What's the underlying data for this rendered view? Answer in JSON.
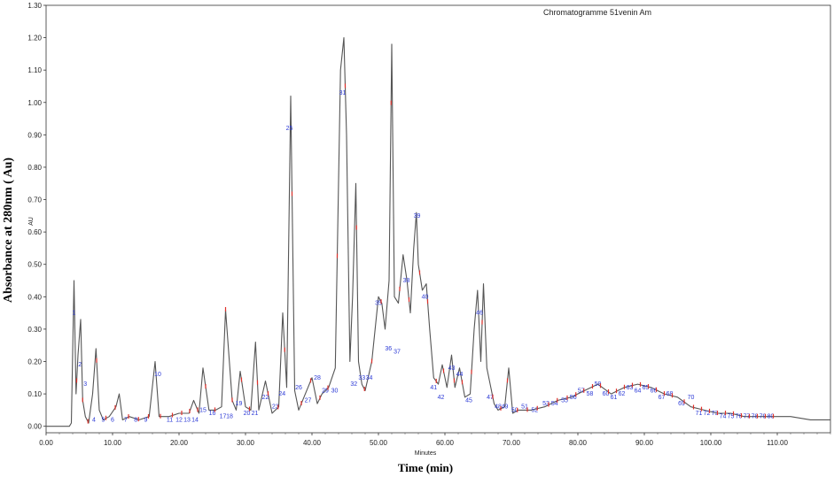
{
  "chart_data": {
    "type": "line",
    "title": "Chromatogramme 51venin Am",
    "ylabel": "Absorbance at 280nm ( Au)",
    "xlabel": "Time (min)",
    "y_unit": "AU",
    "x_unit": "Minutes",
    "xlim": [
      0,
      118
    ],
    "ylim": [
      -0.02,
      1.3
    ],
    "grid": false,
    "x_ticks": [
      "0.00",
      "10.00",
      "20.00",
      "30.00",
      "40.00",
      "50.00",
      "60.00",
      "70.00",
      "80.00",
      "90.00",
      "100.00",
      "110.00"
    ],
    "y_ticks": [
      "0.00",
      "0.10",
      "0.20",
      "0.30",
      "0.40",
      "0.50",
      "0.60",
      "0.70",
      "0.80",
      "0.90",
      "1.00",
      "1.10",
      "1.20",
      "1.30"
    ],
    "series": [
      {
        "color": "#555555",
        "x": [
          0,
          3.5,
          3.8,
          4.2,
          4.5,
          4.8,
          5.2,
          5.5,
          5.9,
          6.4,
          7.0,
          7.5,
          8.0,
          8.6,
          9.5,
          10.5,
          11.0,
          11.5,
          12.5,
          14.0,
          15.5,
          16.4,
          17.0,
          18.5,
          20.0,
          21.5,
          22.2,
          23.0,
          23.6,
          24.5,
          25.5,
          26.4,
          27.0,
          28.0,
          28.6,
          29.2,
          30.0,
          30.8,
          31.5,
          32.0,
          33.0,
          34.0,
          35.0,
          35.6,
          36.2,
          36.8,
          37.4,
          38.0,
          39.0,
          40.0,
          40.8,
          41.5,
          42.5,
          43.5,
          44.3,
          44.8,
          45.2,
          45.7,
          46.1,
          46.6,
          47.0,
          47.5,
          48.0,
          49.0,
          50.0,
          50.5,
          51.0,
          51.6,
          52.0,
          52.4,
          53.0,
          53.7,
          54.3,
          54.8,
          55.3,
          55.7,
          56.0,
          56.6,
          57.2,
          57.7,
          58.3,
          59.0,
          59.6,
          60.3,
          61.0,
          61.5,
          62.2,
          63.0,
          63.8,
          64.4,
          64.9,
          65.4,
          65.8,
          66.3,
          66.9,
          67.4,
          68.0,
          69.0,
          69.6,
          70.2,
          71.0,
          73.0,
          75.0,
          77.0,
          79.0,
          81.0,
          83.0,
          85.0,
          87.0,
          89.0,
          91.0,
          93.0,
          95.0,
          97.0,
          99.0,
          101.0,
          103.0,
          105.0,
          107.0,
          109.0,
          112.0,
          115.0,
          118.0
        ],
        "y": [
          0.0,
          0.0,
          0.01,
          0.45,
          0.1,
          0.22,
          0.33,
          0.08,
          0.03,
          0.01,
          0.1,
          0.24,
          0.05,
          0.02,
          0.03,
          0.06,
          0.1,
          0.02,
          0.03,
          0.02,
          0.03,
          0.2,
          0.03,
          0.03,
          0.04,
          0.04,
          0.08,
          0.04,
          0.18,
          0.05,
          0.05,
          0.06,
          0.36,
          0.08,
          0.05,
          0.17,
          0.06,
          0.05,
          0.26,
          0.05,
          0.14,
          0.04,
          0.06,
          0.35,
          0.12,
          1.02,
          0.11,
          0.05,
          0.1,
          0.15,
          0.07,
          0.1,
          0.12,
          0.18,
          1.1,
          1.2,
          0.9,
          0.2,
          0.4,
          0.75,
          0.2,
          0.13,
          0.11,
          0.2,
          0.4,
          0.38,
          0.3,
          0.45,
          1.18,
          0.4,
          0.38,
          0.53,
          0.45,
          0.35,
          0.55,
          0.66,
          0.5,
          0.42,
          0.44,
          0.3,
          0.15,
          0.13,
          0.19,
          0.12,
          0.22,
          0.12,
          0.18,
          0.09,
          0.1,
          0.3,
          0.42,
          0.2,
          0.44,
          0.18,
          0.12,
          0.07,
          0.05,
          0.06,
          0.18,
          0.04,
          0.05,
          0.05,
          0.06,
          0.08,
          0.09,
          0.11,
          0.13,
          0.1,
          0.12,
          0.13,
          0.12,
          0.1,
          0.09,
          0.06,
          0.05,
          0.04,
          0.04,
          0.03,
          0.03,
          0.03,
          0.03,
          0.02,
          0.02
        ]
      }
    ],
    "peak_labels": [
      {
        "text": "1",
        "x": 4.2,
        "y": 0.35
      },
      {
        "text": "2",
        "x": 5.1,
        "y": 0.19
      },
      {
        "text": "3",
        "x": 5.9,
        "y": 0.13
      },
      {
        "text": "4",
        "x": 7.2,
        "y": 0.02
      },
      {
        "text": "5",
        "x": 8.6,
        "y": 0.02
      },
      {
        "text": "6",
        "x": 10.0,
        "y": 0.02
      },
      {
        "text": "7",
        "x": 12.0,
        "y": 0.02
      },
      {
        "text": "8",
        "x": 13.5,
        "y": 0.02
      },
      {
        "text": "9",
        "x": 15.0,
        "y": 0.02
      },
      {
        "text": "10",
        "x": 16.8,
        "y": 0.16
      },
      {
        "text": "11",
        "x": 18.6,
        "y": 0.02
      },
      {
        "text": "12",
        "x": 20.0,
        "y": 0.02
      },
      {
        "text": "13",
        "x": 21.2,
        "y": 0.02
      },
      {
        "text": "14",
        "x": 22.4,
        "y": 0.02
      },
      {
        "text": "15",
        "x": 23.6,
        "y": 0.05
      },
      {
        "text": "16",
        "x": 25.0,
        "y": 0.04
      },
      {
        "text": "17",
        "x": 26.6,
        "y": 0.03
      },
      {
        "text": "18",
        "x": 27.6,
        "y": 0.03
      },
      {
        "text": "19",
        "x": 29.0,
        "y": 0.07
      },
      {
        "text": "20",
        "x": 30.2,
        "y": 0.04
      },
      {
        "text": "21",
        "x": 31.4,
        "y": 0.04
      },
      {
        "text": "22",
        "x": 33.0,
        "y": 0.09
      },
      {
        "text": "23",
        "x": 34.5,
        "y": 0.06
      },
      {
        "text": "24",
        "x": 35.5,
        "y": 0.1
      },
      {
        "text": "25",
        "x": 36.6,
        "y": 0.92
      },
      {
        "text": "26",
        "x": 38.0,
        "y": 0.12
      },
      {
        "text": "27",
        "x": 39.4,
        "y": 0.08
      },
      {
        "text": "28",
        "x": 40.8,
        "y": 0.15
      },
      {
        "text": "29",
        "x": 42.0,
        "y": 0.11
      },
      {
        "text": "30",
        "x": 43.4,
        "y": 0.11
      },
      {
        "text": "31",
        "x": 44.6,
        "y": 1.03
      },
      {
        "text": "32",
        "x": 46.3,
        "y": 0.13
      },
      {
        "text": "33",
        "x": 47.5,
        "y": 0.15
      },
      {
        "text": "34",
        "x": 48.6,
        "y": 0.15
      },
      {
        "text": "35",
        "x": 50.0,
        "y": 0.38
      },
      {
        "text": "36",
        "x": 51.5,
        "y": 0.24
      },
      {
        "text": "37",
        "x": 52.8,
        "y": 0.23
      },
      {
        "text": "38",
        "x": 54.2,
        "y": 0.45
      },
      {
        "text": "39",
        "x": 55.8,
        "y": 0.65
      },
      {
        "text": "40",
        "x": 57.0,
        "y": 0.4
      },
      {
        "text": "41",
        "x": 58.3,
        "y": 0.12
      },
      {
        "text": "42",
        "x": 59.4,
        "y": 0.09
      },
      {
        "text": "43",
        "x": 61.0,
        "y": 0.18
      },
      {
        "text": "44",
        "x": 62.2,
        "y": 0.16
      },
      {
        "text": "45",
        "x": 63.6,
        "y": 0.08
      },
      {
        "text": "46",
        "x": 65.2,
        "y": 0.35
      },
      {
        "text": "47",
        "x": 66.8,
        "y": 0.09
      },
      {
        "text": "48",
        "x": 68.0,
        "y": 0.06
      },
      {
        "text": "49",
        "x": 69.0,
        "y": 0.06
      },
      {
        "text": "50",
        "x": 70.5,
        "y": 0.05
      },
      {
        "text": "51",
        "x": 72.0,
        "y": 0.06
      },
      {
        "text": "52",
        "x": 73.5,
        "y": 0.05
      },
      {
        "text": "53",
        "x": 75.2,
        "y": 0.07
      },
      {
        "text": "54",
        "x": 76.5,
        "y": 0.07
      },
      {
        "text": "55",
        "x": 78.0,
        "y": 0.08
      },
      {
        "text": "56",
        "x": 79.3,
        "y": 0.09
      },
      {
        "text": "57",
        "x": 80.5,
        "y": 0.11
      },
      {
        "text": "58",
        "x": 81.8,
        "y": 0.1
      },
      {
        "text": "59",
        "x": 83.0,
        "y": 0.13
      },
      {
        "text": "60",
        "x": 84.2,
        "y": 0.1
      },
      {
        "text": "61",
        "x": 85.4,
        "y": 0.09
      },
      {
        "text": "62",
        "x": 86.6,
        "y": 0.1
      },
      {
        "text": "63",
        "x": 87.8,
        "y": 0.12
      },
      {
        "text": "64",
        "x": 89.0,
        "y": 0.11
      },
      {
        "text": "65",
        "x": 90.2,
        "y": 0.12
      },
      {
        "text": "66",
        "x": 91.4,
        "y": 0.11
      },
      {
        "text": "67",
        "x": 92.6,
        "y": 0.09
      },
      {
        "text": "68",
        "x": 93.8,
        "y": 0.1
      },
      {
        "text": "69",
        "x": 95.6,
        "y": 0.07
      },
      {
        "text": "70",
        "x": 97.0,
        "y": 0.09
      },
      {
        "text": "71",
        "x": 98.2,
        "y": 0.04
      },
      {
        "text": "72",
        "x": 99.4,
        "y": 0.04
      },
      {
        "text": "73",
        "x": 100.6,
        "y": 0.04
      },
      {
        "text": "74",
        "x": 101.8,
        "y": 0.03
      },
      {
        "text": "75",
        "x": 103.0,
        "y": 0.03
      },
      {
        "text": "76",
        "x": 104.2,
        "y": 0.03
      },
      {
        "text": "77",
        "x": 105.4,
        "y": 0.03
      },
      {
        "text": "78",
        "x": 106.6,
        "y": 0.03
      },
      {
        "text": "79",
        "x": 107.8,
        "y": 0.03
      },
      {
        "text": "80",
        "x": 109.0,
        "y": 0.03
      }
    ]
  }
}
